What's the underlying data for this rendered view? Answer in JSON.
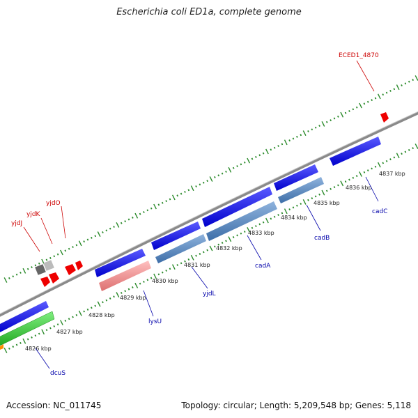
{
  "title": "Escherichia coli ED1a, complete genome",
  "footer": {
    "accession": "Accession: NC_011745",
    "summary": "Topology: circular; Length: 5,209,548 bp; Genes: 5,118"
  },
  "colors": {
    "backbone": "#888888",
    "tick": "#2a8a2a",
    "forward_label": "#cc0000",
    "reverse_label": "#0000aa",
    "cds": "#1f1fe0",
    "cad_operon": "#4a7fbf",
    "trna": "#ee9090",
    "dcu": "#33bb33"
  },
  "scale_labels": [
    "4826 kbp",
    "4827 kbp",
    "4828 kbp",
    "4829 kbp",
    "4830 kbp",
    "4831 kbp",
    "4832 kbp",
    "4833 kbp",
    "4834 kbp",
    "4835 kbp",
    "4836 kbp",
    "4837 kbp"
  ],
  "genes": [
    {
      "name": "ECED1_4870",
      "strand": "forward"
    },
    {
      "name": "yjdO",
      "strand": "forward"
    },
    {
      "name": "yjdK",
      "strand": "forward"
    },
    {
      "name": "yjdJ",
      "strand": "forward"
    },
    {
      "name": "cadC",
      "strand": "reverse"
    },
    {
      "name": "cadB",
      "strand": "reverse"
    },
    {
      "name": "cadA",
      "strand": "reverse"
    },
    {
      "name": "yjdL",
      "strand": "reverse"
    },
    {
      "name": "lysU",
      "strand": "reverse"
    },
    {
      "name": "dcuS",
      "strand": "reverse"
    }
  ]
}
